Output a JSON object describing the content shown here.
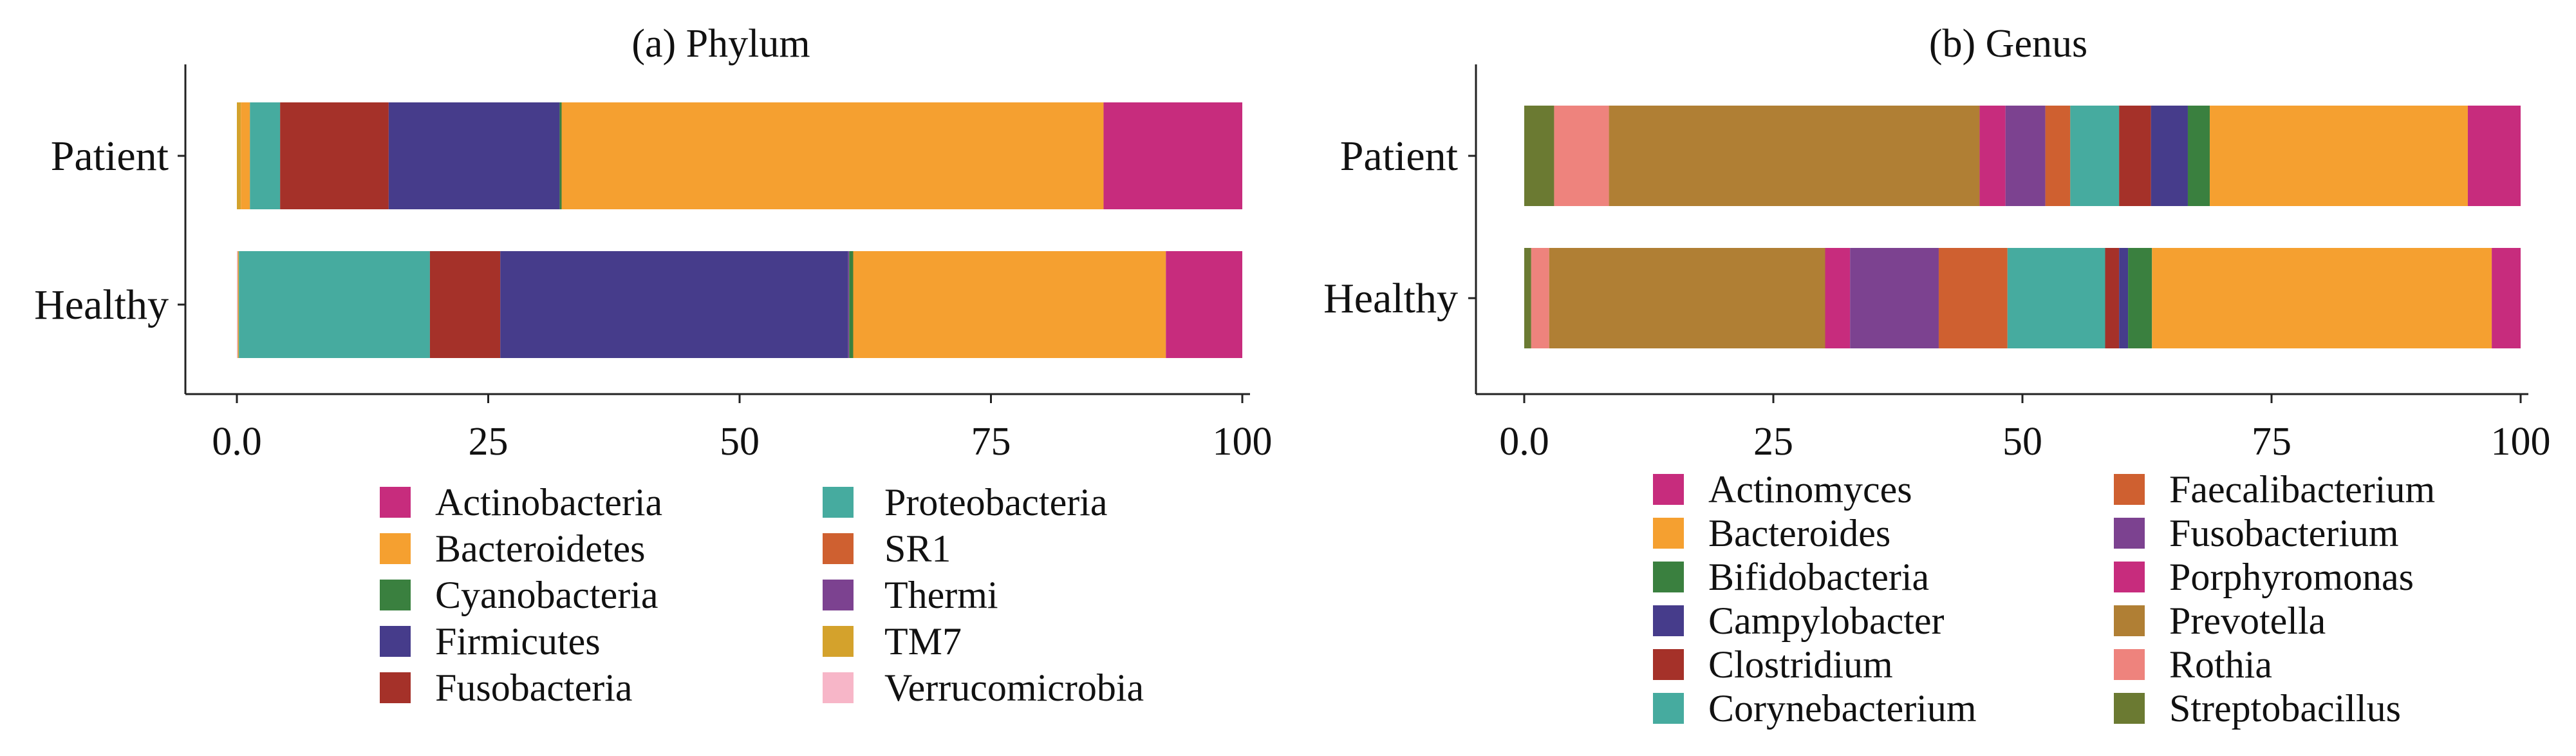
{
  "chart_data": [
    {
      "type": "bar",
      "orientation": "horizontal",
      "stacked": true,
      "title": "(a) Phylum",
      "xlabel": "",
      "ylabel": "",
      "xlim": [
        0,
        100
      ],
      "xticks": [
        0,
        25,
        50,
        75,
        100
      ],
      "xtick_labels": [
        "0.0",
        "25",
        "50",
        "75",
        "100"
      ],
      "categories": [
        "Patient",
        "Healthy"
      ],
      "series": [
        {
          "name": "Verrucomicrobia",
          "color": "#f7b6c8",
          "values": [
            0.0,
            0.1
          ]
        },
        {
          "name": "TM7",
          "color": "#d4a22c",
          "values": [
            0.4,
            0.1
          ]
        },
        {
          "name": "Bacteroidetes",
          "color": "#f5a030",
          "values": [
            0.9,
            0.0
          ]
        },
        {
          "name": "Proteobacteria",
          "color": "#46ab9f",
          "values": [
            3.0,
            19.0
          ]
        },
        {
          "name": "Fusobacteria",
          "color": "#a53129",
          "values": [
            10.8,
            7.0
          ]
        },
        {
          "name": "Firmicutes",
          "color": "#463c8b",
          "values": [
            17.0,
            34.6
          ]
        },
        {
          "name": "Thermi",
          "color": "#7c4290",
          "values": [
            0.0,
            0.1
          ]
        },
        {
          "name": "SR1",
          "color": "#cf6030",
          "values": [
            0.0,
            0.0
          ]
        },
        {
          "name": "Cyanobacteria",
          "color": "#3a803f",
          "values": [
            0.2,
            0.4
          ]
        },
        {
          "name": "Bacteroidetes",
          "color": "#f5a030",
          "values": [
            53.9,
            31.1
          ]
        },
        {
          "name": "Actinobacteria",
          "color": "#c72c7d",
          "values": [
            13.8,
            7.6
          ]
        }
      ],
      "legend": {
        "placement": "bottom",
        "columns": [
          [
            {
              "name": "Actinobacteria",
              "color": "#c72c7d"
            },
            {
              "name": "Bacteroidetes",
              "color": "#f5a030"
            },
            {
              "name": "Cyanobacteria",
              "color": "#3a803f"
            },
            {
              "name": "Firmicutes",
              "color": "#463c8b"
            },
            {
              "name": "Fusobacteria",
              "color": "#a53129"
            }
          ],
          [
            {
              "name": "Proteobacteria",
              "color": "#46ab9f"
            },
            {
              "name": "SR1",
              "color": "#cf6030"
            },
            {
              "name": "Thermi",
              "color": "#7c4290"
            },
            {
              "name": "TM7",
              "color": "#d4a22c"
            },
            {
              "name": "Verrucomicrobia",
              "color": "#f7b6c8"
            }
          ]
        ]
      }
    },
    {
      "type": "bar",
      "orientation": "horizontal",
      "stacked": true,
      "title": "(b) Genus",
      "xlabel": "",
      "ylabel": "",
      "xlim": [
        0,
        100
      ],
      "xticks": [
        0,
        25,
        50,
        75,
        100
      ],
      "xtick_labels": [
        "0.0",
        "25",
        "50",
        "75",
        "100"
      ],
      "categories": [
        "Patient",
        "Healthy"
      ],
      "series": [
        {
          "name": "Streptobacillus",
          "color": "#6b7a32",
          "values": [
            3.0,
            0.7
          ]
        },
        {
          "name": "Rothia",
          "color": "#ee837d",
          "values": [
            5.5,
            1.8
          ]
        },
        {
          "name": "Prevotella",
          "color": "#b07f34",
          "values": [
            37.2,
            27.7
          ]
        },
        {
          "name": "Porphyromonas",
          "color": "#c72c7d",
          "values": [
            2.6,
            2.5
          ]
        },
        {
          "name": "Fusobacterium",
          "color": "#7c4290",
          "values": [
            4.0,
            8.9
          ]
        },
        {
          "name": "Faecalibacterium",
          "color": "#cf6030",
          "values": [
            2.5,
            6.9
          ]
        },
        {
          "name": "Corynebacterium",
          "color": "#46ab9f",
          "values": [
            4.9,
            9.8
          ]
        },
        {
          "name": "Clostridium",
          "color": "#a53129",
          "values": [
            3.2,
            1.4
          ]
        },
        {
          "name": "Campylobacter",
          "color": "#463c8b",
          "values": [
            3.7,
            0.9
          ]
        },
        {
          "name": "Bifidobacteria",
          "color": "#3a803f",
          "values": [
            2.2,
            2.4
          ]
        },
        {
          "name": "Bacteroides",
          "color": "#f5a030",
          "values": [
            25.9,
            34.1
          ]
        },
        {
          "name": "Actinomyces",
          "color": "#c72c7d",
          "values": [
            5.3,
            2.9
          ]
        }
      ],
      "legend": {
        "placement": "bottom",
        "columns": [
          [
            {
              "name": "Actinomyces",
              "color": "#c72c7d"
            },
            {
              "name": "Bacteroides",
              "color": "#f5a030"
            },
            {
              "name": "Bifidobacteria",
              "color": "#3a803f"
            },
            {
              "name": "Campylobacter",
              "color": "#463c8b"
            },
            {
              "name": "Clostridium",
              "color": "#a53129"
            },
            {
              "name": "Corynebacterium",
              "color": "#46ab9f"
            }
          ],
          [
            {
              "name": "Faecalibacterium",
              "color": "#cf6030"
            },
            {
              "name": "Fusobacterium",
              "color": "#7c4290"
            },
            {
              "name": "Porphyromonas",
              "color": "#c72c7d"
            },
            {
              "name": "Prevotella",
              "color": "#b07f34"
            },
            {
              "name": "Rothia",
              "color": "#ee837d"
            },
            {
              "name": "Streptobacillus",
              "color": "#6b7a32"
            }
          ]
        ]
      }
    }
  ]
}
